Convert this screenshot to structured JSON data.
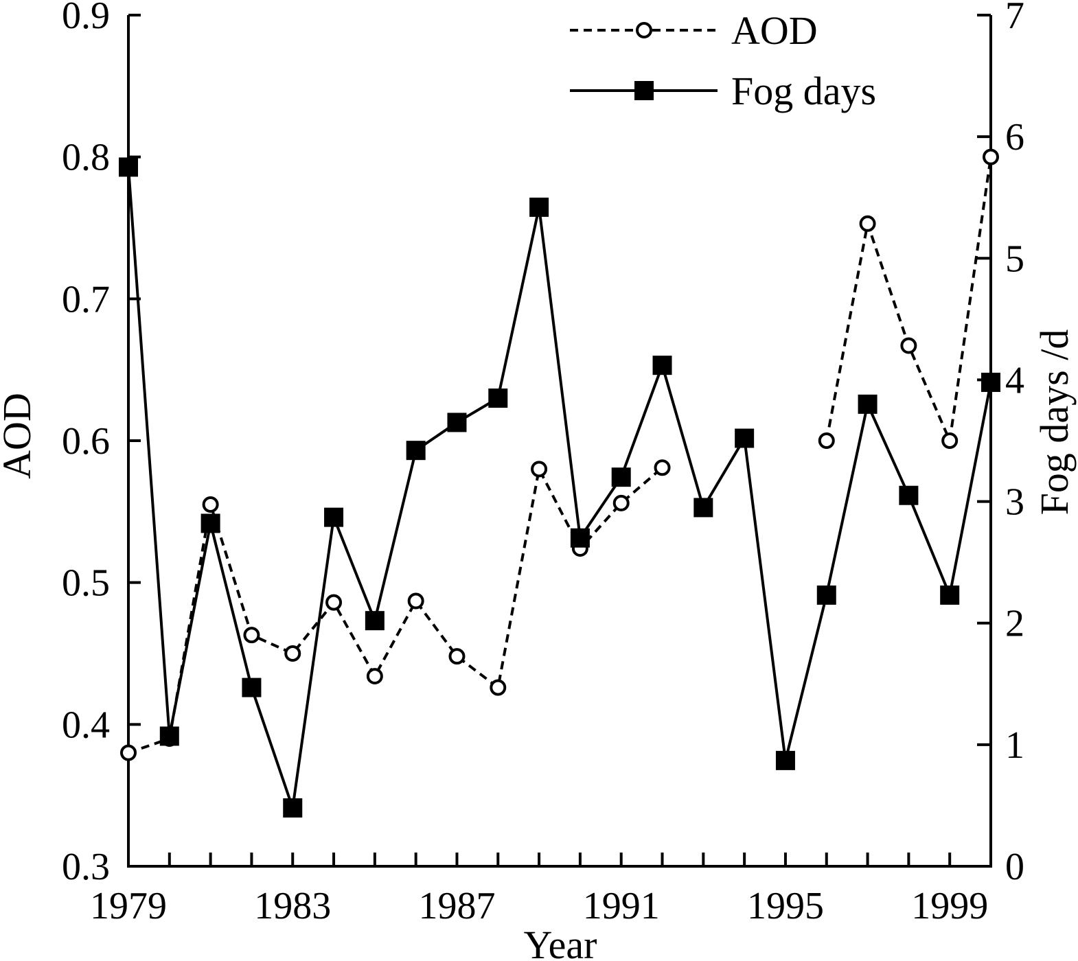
{
  "chart_data": {
    "type": "line",
    "xlabel": "Year",
    "ylabel": "AOD",
    "y2label": "Fog days /d",
    "xlim": [
      1979,
      2000
    ],
    "ylim": [
      0.3,
      0.9
    ],
    "y2lim": [
      0,
      7
    ],
    "x_ticks": [
      1979,
      1980,
      1981,
      1982,
      1983,
      1984,
      1985,
      1986,
      1987,
      1988,
      1989,
      1990,
      1991,
      1992,
      1993,
      1994,
      1995,
      1996,
      1997,
      1998,
      1999,
      2000
    ],
    "x_tick_labels": [
      {
        "value": 1979,
        "label": "1979"
      },
      {
        "value": 1983,
        "label": "1983"
      },
      {
        "value": 1987,
        "label": "1987"
      },
      {
        "value": 1991,
        "label": "1991"
      },
      {
        "value": 1995,
        "label": "1995"
      },
      {
        "value": 1999,
        "label": "1999"
      }
    ],
    "y_ticks": [
      {
        "value": 0.3,
        "label": "0.3"
      },
      {
        "value": 0.4,
        "label": "0.4"
      },
      {
        "value": 0.5,
        "label": "0.5"
      },
      {
        "value": 0.6,
        "label": "0.6"
      },
      {
        "value": 0.7,
        "label": "0.7"
      },
      {
        "value": 0.8,
        "label": "0.8"
      },
      {
        "value": 0.9,
        "label": "0.9"
      }
    ],
    "y2_ticks": [
      {
        "value": 0,
        "label": "0"
      },
      {
        "value": 1,
        "label": "1"
      },
      {
        "value": 2,
        "label": "2"
      },
      {
        "value": 3,
        "label": "3"
      },
      {
        "value": 4,
        "label": "4"
      },
      {
        "value": 5,
        "label": "5"
      },
      {
        "value": 6,
        "label": "6"
      },
      {
        "value": 7,
        "label": "7"
      }
    ],
    "grid": false,
    "legend_position": "top-right",
    "series": [
      {
        "name": "AOD",
        "axis": "left",
        "style": "dashed",
        "marker": "open-circle",
        "color": "#000000",
        "segments": [
          [
            [
              1979,
              0.38
            ],
            [
              1980,
              0.39
            ],
            [
              1981,
              0.555
            ],
            [
              1982,
              0.463
            ],
            [
              1983,
              0.45
            ],
            [
              1984,
              0.486
            ],
            [
              1985,
              0.434
            ],
            [
              1986,
              0.487
            ],
            [
              1987,
              0.448
            ],
            [
              1988,
              0.426
            ],
            [
              1989,
              0.58
            ],
            [
              1990,
              0.524
            ],
            [
              1991,
              0.556
            ],
            [
              1992,
              0.581
            ]
          ],
          [
            [
              1996,
              0.6
            ],
            [
              1997,
              0.753
            ],
            [
              1998,
              0.667
            ],
            [
              1999,
              0.6
            ],
            [
              2000,
              0.8
            ]
          ]
        ]
      },
      {
        "name": "Fog days",
        "axis": "right",
        "style": "solid",
        "marker": "filled-square",
        "color": "#000000",
        "segments": [
          [
            [
              1979,
              5.75
            ],
            [
              1980,
              1.07
            ],
            [
              1981,
              2.82
            ],
            [
              1982,
              1.47
            ],
            [
              1983,
              0.48
            ],
            [
              1984,
              2.87
            ],
            [
              1985,
              2.02
            ],
            [
              1986,
              3.42
            ],
            [
              1987,
              3.65
            ],
            [
              1988,
              3.85
            ],
            [
              1989,
              5.42
            ],
            [
              1990,
              2.7
            ],
            [
              1991,
              3.2
            ],
            [
              1992,
              4.12
            ],
            [
              1993,
              2.95
            ],
            [
              1994,
              3.52
            ],
            [
              1995,
              0.87
            ],
            [
              1996,
              2.23
            ],
            [
              1997,
              3.8
            ],
            [
              1998,
              3.05
            ],
            [
              1999,
              2.23
            ],
            [
              2000,
              3.98
            ]
          ]
        ]
      }
    ]
  }
}
